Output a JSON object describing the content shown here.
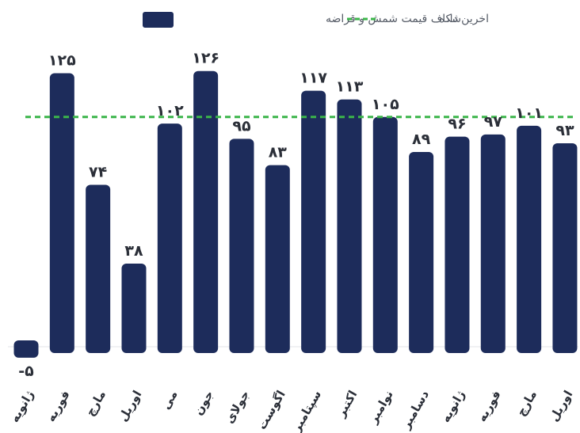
{
  "chart_data": {
    "type": "bar",
    "categories": [
      "ژانویه",
      "فوریه",
      "مارچ",
      "اوریل",
      "می",
      "جون",
      "جولای",
      "اگوست",
      "سپتامبر",
      "اکتبر",
      "نوامبر",
      "دسامبر",
      "ژانویه",
      "فوریه",
      "مارچ",
      "اوریل"
    ],
    "series": [
      {
        "name": "شکاف قیمت شمش و قراضه",
        "values": [
          -5,
          125,
          74,
          38,
          102,
          126,
          95,
          83,
          117,
          113,
          105,
          89,
          96,
          97,
          101,
          93
        ],
        "value_labels": [
          "-۵",
          "۱۲۵",
          "۷۴",
          "۳۸",
          "۱۰۲",
          "۱۲۶",
          "۹۵",
          "۸۳",
          "۱۱۷",
          "۱۱۳",
          "۱۰۵",
          "۸۹",
          "۹۶",
          "۹۷",
          "۱۰۱",
          "۹۳"
        ],
        "color": "#1d2c5b"
      }
    ],
    "reference_line": {
      "name": "اخرین داده",
      "value": 105,
      "color": "#3bb54a",
      "style": "dashed"
    },
    "ylim": [
      -8,
      135
    ],
    "grid": false,
    "legend_position": "top"
  }
}
